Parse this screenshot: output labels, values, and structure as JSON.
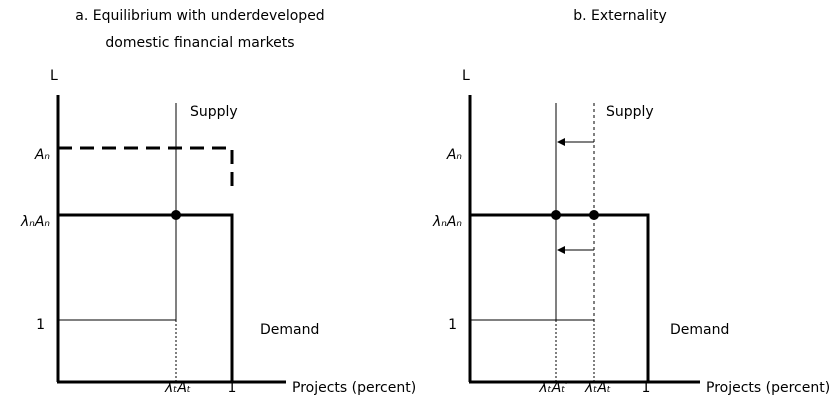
{
  "panel_a": {
    "title_lines": [
      "a. Equilibrium with underdeveloped",
      "domestic financial markets"
    ],
    "y_axis_label": "L",
    "supply_label": "Supply",
    "demand_label": "Demand",
    "y_labels": [
      "Aₙ",
      "λₙAₙ",
      "1"
    ],
    "x_labels": [
      "λₜAₜ",
      "1"
    ],
    "x_axis_label": "Projects (percent)"
  },
  "panel_b": {
    "title_lines": [
      "b. Externality"
    ],
    "y_axis_label": "L",
    "supply_label": "Supply",
    "demand_label": "Demand",
    "y_labels": [
      "Aₙ",
      "λₙAₙ",
      "1"
    ],
    "x_labels": [
      "λₜAₜ′",
      "λₜAₜ",
      "1"
    ],
    "x_axis_label": "Projects (percent)"
  }
}
